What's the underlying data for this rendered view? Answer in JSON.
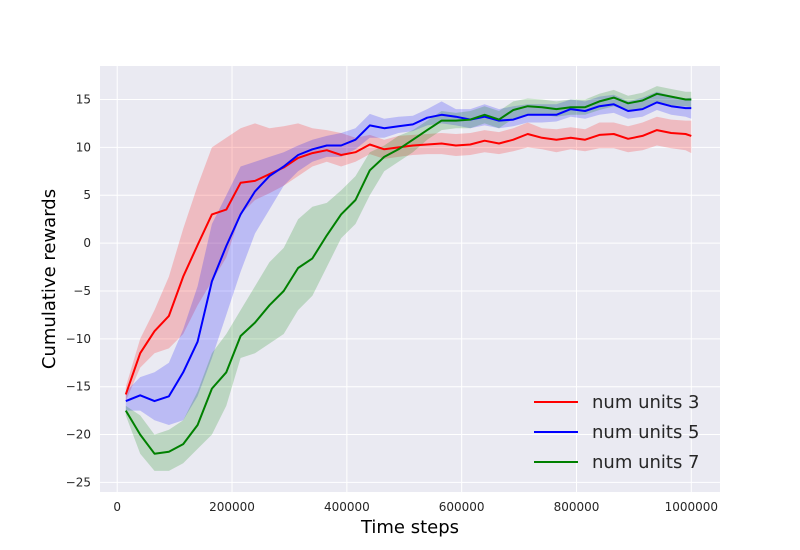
{
  "chart_data": {
    "type": "line",
    "title": "",
    "xlabel": "Time steps",
    "ylabel": "Cumulative rewards",
    "xlim": [
      -30000,
      1050000
    ],
    "ylim": [
      -26,
      18.5
    ],
    "x_ticks": [
      0,
      200000,
      400000,
      600000,
      800000,
      1000000
    ],
    "x_tick_labels": [
      "0",
      "200000",
      "400000",
      "600000",
      "800000",
      "1000000"
    ],
    "y_ticks": [
      -25,
      -20,
      -15,
      -10,
      -5,
      0,
      5,
      10,
      15
    ],
    "y_tick_labels": [
      "−25",
      "−20",
      "−15",
      "−10",
      "−5",
      "0",
      "5",
      "10",
      "15"
    ],
    "grid": true,
    "legend_position": "lower-right",
    "background": "#EAEAF2",
    "x": [
      15000,
      40000,
      65000,
      90000,
      115000,
      140000,
      165000,
      190000,
      215000,
      240000,
      265000,
      290000,
      315000,
      340000,
      365000,
      390000,
      415000,
      440000,
      465000,
      490000,
      515000,
      540000,
      565000,
      590000,
      615000,
      640000,
      665000,
      690000,
      715000,
      740000,
      765000,
      790000,
      815000,
      840000,
      865000,
      890000,
      915000,
      940000,
      965000,
      990000,
      1000000
    ],
    "series": [
      {
        "name": "num units 3",
        "color": "#FF0000",
        "values": [
          -15.8,
          -11.5,
          -9.2,
          -7.6,
          -3.5,
          -0.2,
          3.0,
          3.5,
          6.3,
          6.5,
          7.2,
          7.9,
          8.9,
          9.4,
          9.7,
          9.2,
          9.5,
          10.3,
          9.8,
          10.0,
          10.2,
          10.3,
          10.4,
          10.2,
          10.3,
          10.7,
          10.4,
          10.8,
          11.4,
          11.0,
          10.8,
          11.0,
          10.8,
          11.3,
          11.4,
          10.9,
          11.2,
          11.8,
          11.5,
          11.4,
          11.2
        ],
        "lower": [
          -16.5,
          -13.0,
          -11.5,
          -11.0,
          -9.5,
          -6.5,
          -4.0,
          -1.5,
          3.0,
          4.5,
          5.2,
          6.0,
          7.0,
          8.0,
          8.5,
          8.0,
          8.5,
          9.3,
          8.8,
          9.0,
          9.2,
          9.3,
          9.3,
          9.1,
          9.2,
          9.5,
          9.3,
          9.6,
          10.0,
          9.8,
          9.5,
          9.8,
          9.6,
          9.9,
          9.9,
          9.5,
          9.7,
          10.2,
          9.9,
          9.7,
          9.4
        ],
        "upper": [
          -15.0,
          -10.0,
          -7.0,
          -3.5,
          1.5,
          6.0,
          10.0,
          11.0,
          12.0,
          12.5,
          12.0,
          12.2,
          12.5,
          12.0,
          11.8,
          11.5,
          11.0,
          11.3,
          10.8,
          11.2,
          11.3,
          11.4,
          11.5,
          11.4,
          11.5,
          11.8,
          11.6,
          12.0,
          12.6,
          12.0,
          11.9,
          12.1,
          11.9,
          12.6,
          12.6,
          12.2,
          12.6,
          13.2,
          12.9,
          12.8,
          12.8
        ]
      },
      {
        "name": "num units 5",
        "color": "#0000FF",
        "values": [
          -16.5,
          -15.9,
          -16.5,
          -16.0,
          -13.5,
          -10.3,
          -4.0,
          -0.3,
          3.0,
          5.4,
          7.0,
          8.0,
          9.2,
          9.8,
          10.2,
          10.2,
          10.8,
          12.3,
          12.0,
          12.2,
          12.4,
          13.1,
          13.4,
          13.2,
          12.9,
          13.2,
          12.8,
          12.9,
          13.4,
          13.4,
          13.4,
          14.0,
          13.8,
          14.3,
          14.5,
          13.8,
          14.0,
          14.7,
          14.3,
          14.1,
          14.1
        ],
        "lower": [
          -17.5,
          -17.5,
          -18.5,
          -19.0,
          -18.5,
          -16.0,
          -12.0,
          -7.5,
          -3.0,
          1.0,
          3.5,
          6.0,
          7.5,
          8.5,
          9.0,
          9.0,
          9.8,
          11.0,
          11.0,
          11.5,
          11.7,
          12.3,
          12.5,
          12.3,
          12.0,
          12.3,
          12.0,
          12.2,
          12.6,
          12.6,
          12.7,
          13.2,
          13.0,
          13.4,
          13.6,
          13.0,
          13.2,
          13.9,
          13.4,
          13.2,
          13.0
        ],
        "upper": [
          -15.5,
          -14.0,
          -13.5,
          -12.5,
          -9.0,
          -4.5,
          2.0,
          5.0,
          8.0,
          8.5,
          9.0,
          9.5,
          10.2,
          10.8,
          11.2,
          11.5,
          12.0,
          13.5,
          13.0,
          13.2,
          13.3,
          14.0,
          14.8,
          14.0,
          14.0,
          14.5,
          14.0,
          14.3,
          14.5,
          14.5,
          14.5,
          15.0,
          14.8,
          15.3,
          15.5,
          14.8,
          15.2,
          15.8,
          15.4,
          15.1,
          15.2
        ]
      },
      {
        "name": "num units 7",
        "color": "#008000",
        "values": [
          -17.5,
          -20.0,
          -22.0,
          -21.8,
          -21.0,
          -19.0,
          -15.2,
          -13.5,
          -9.7,
          -8.3,
          -6.5,
          -5.0,
          -2.6,
          -1.6,
          0.8,
          3.0,
          4.5,
          7.6,
          9.0,
          9.8,
          10.8,
          11.8,
          12.8,
          12.8,
          12.9,
          13.4,
          12.9,
          13.9,
          14.3,
          14.2,
          14.0,
          14.2,
          14.2,
          14.8,
          15.2,
          14.6,
          14.9,
          15.6,
          15.3,
          15.0,
          15.0
        ],
        "lower": [
          -18.0,
          -22.0,
          -23.8,
          -23.8,
          -23.0,
          -21.5,
          -20.0,
          -17.0,
          -12.0,
          -11.5,
          -10.5,
          -9.5,
          -7.0,
          -5.5,
          -2.5,
          0.5,
          2.0,
          5.0,
          7.5,
          8.5,
          9.5,
          10.8,
          11.8,
          12.0,
          12.0,
          12.5,
          12.0,
          13.0,
          13.5,
          13.4,
          13.2,
          13.4,
          13.4,
          13.9,
          14.3,
          13.8,
          14.1,
          14.8,
          14.4,
          14.3,
          14.2
        ],
        "upper": [
          -17.0,
          -18.0,
          -20.0,
          -19.5,
          -18.5,
          -15.5,
          -11.5,
          -9.5,
          -7.0,
          -4.5,
          -2.0,
          -0.5,
          2.5,
          3.8,
          4.2,
          5.5,
          7.0,
          9.5,
          10.2,
          11.2,
          11.8,
          12.8,
          13.8,
          13.6,
          13.8,
          14.3,
          13.8,
          14.8,
          15.1,
          15.0,
          14.8,
          15.0,
          15.0,
          15.6,
          16.0,
          15.4,
          15.7,
          16.4,
          16.1,
          15.8,
          15.8
        ]
      }
    ]
  }
}
